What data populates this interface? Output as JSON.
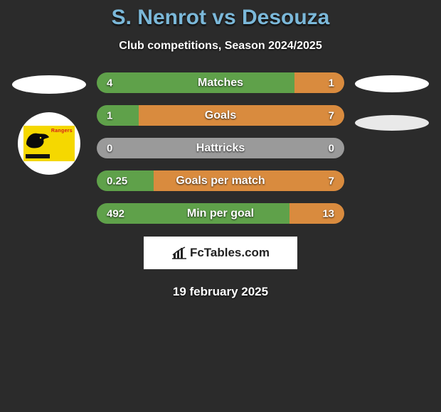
{
  "title": "S. Nenrot vs Desouza",
  "subtitle": "Club competitions, Season 2024/2025",
  "date": "19 february 2025",
  "brand": "FcTables.com",
  "colors": {
    "background": "#2b2b2b",
    "title": "#7bb8d9",
    "left_bar": "#5fa14a",
    "right_bar": "#d98b3e",
    "neutral_bar": "#9a9a9a",
    "text": "#ffffff"
  },
  "left_badge": {
    "name": "Rangers",
    "panther_color": "#0a0a0a",
    "bg_color": "#f5d800",
    "text_color": "#d41b1b"
  },
  "stats": [
    {
      "label": "Matches",
      "left_value": "4",
      "right_value": "1",
      "left_pct": 80,
      "right_pct": 20,
      "left_color": "#5fa14a",
      "right_color": "#d98b3e"
    },
    {
      "label": "Goals",
      "left_value": "1",
      "right_value": "7",
      "left_pct": 17,
      "right_pct": 83,
      "left_color": "#5fa14a",
      "right_color": "#d98b3e"
    },
    {
      "label": "Hattricks",
      "left_value": "0",
      "right_value": "0",
      "left_pct": 100,
      "right_pct": 0,
      "left_color": "#9a9a9a",
      "right_color": "#9a9a9a"
    },
    {
      "label": "Goals per match",
      "left_value": "0.25",
      "right_value": "7",
      "left_pct": 23,
      "right_pct": 77,
      "left_color": "#5fa14a",
      "right_color": "#d98b3e"
    },
    {
      "label": "Min per goal",
      "left_value": "492",
      "right_value": "13",
      "left_pct": 78,
      "right_pct": 22,
      "left_color": "#5fa14a",
      "right_color": "#d98b3e"
    }
  ]
}
